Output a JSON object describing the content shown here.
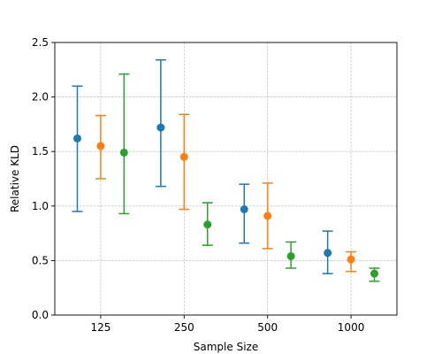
{
  "chart_data": {
    "type": "scatter",
    "xlabel": "Sample Size",
    "ylabel": "Relative KLD",
    "categories": [
      "125",
      "250",
      "500",
      "1000"
    ],
    "ylim": [
      0.0,
      2.5
    ],
    "yticks": [
      "0.0",
      "0.5",
      "1.0",
      "1.5",
      "2.0",
      "2.5"
    ],
    "grid": true,
    "series": [
      {
        "color": "#1f77b4",
        "points": [
          {
            "category": "125",
            "value": 1.62,
            "low": 0.95,
            "high": 2.1
          },
          {
            "category": "250",
            "value": 1.72,
            "low": 1.18,
            "high": 2.34
          },
          {
            "category": "500",
            "value": 0.97,
            "low": 0.66,
            "high": 1.2
          },
          {
            "category": "1000",
            "value": 0.57,
            "low": 0.38,
            "high": 0.77
          }
        ]
      },
      {
        "color": "#ff7f0e",
        "points": [
          {
            "category": "125",
            "value": 1.55,
            "low": 1.25,
            "high": 1.83
          },
          {
            "category": "250",
            "value": 1.45,
            "low": 0.97,
            "high": 1.84
          },
          {
            "category": "500",
            "value": 0.91,
            "low": 0.61,
            "high": 1.21
          },
          {
            "category": "1000",
            "value": 0.51,
            "low": 0.4,
            "high": 0.58
          }
        ]
      },
      {
        "color": "#2ca02c",
        "points": [
          {
            "category": "125",
            "value": 1.49,
            "low": 0.93,
            "high": 2.21
          },
          {
            "category": "250",
            "value": 0.83,
            "low": 0.64,
            "high": 1.03
          },
          {
            "category": "500",
            "value": 0.54,
            "low": 0.43,
            "high": 0.67
          },
          {
            "category": "1000",
            "value": 0.38,
            "low": 0.31,
            "high": 0.43
          }
        ]
      }
    ]
  }
}
